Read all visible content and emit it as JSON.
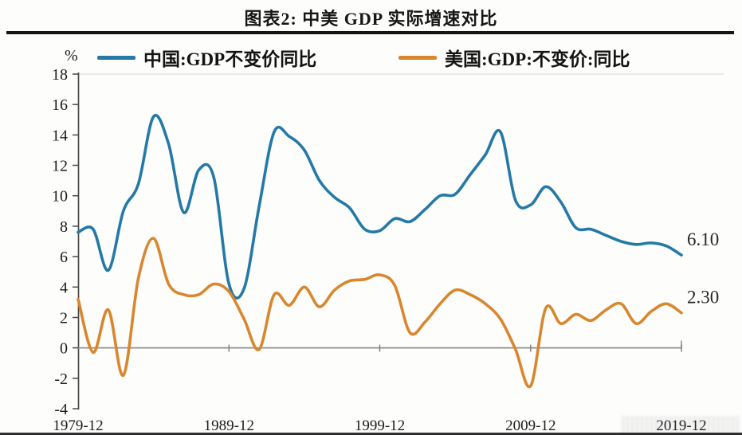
{
  "title": "图表2: 中美 GDP 实际增速对比",
  "axis_unit": "%",
  "legend": {
    "items": [
      {
        "label": "中国:GDP不变价同比",
        "color": "#2479A6"
      },
      {
        "label": "美国:GDP:不变价:同比",
        "color": "#D8872E"
      }
    ]
  },
  "chart_data": {
    "type": "line",
    "title": "图表2: 中美 GDP 实际增速对比",
    "xlabel": "",
    "ylabel": "%",
    "ylim": [
      -4,
      18
    ],
    "y_tick_step": 2,
    "grid": false,
    "legend_position": "top",
    "x_range": [
      1979,
      2019
    ],
    "x_tick_years": [
      1979,
      1989,
      1999,
      2009,
      2019
    ],
    "x_tick_labels": [
      "1979-12",
      "1989-12",
      "1999-12",
      "2009-12",
      "2019-12"
    ],
    "series": [
      {
        "name": "中国:GDP不变价同比",
        "color": "#2479A6",
        "end_label": "6.10",
        "values": [
          7.6,
          7.8,
          5.1,
          9.0,
          10.8,
          15.2,
          13.4,
          8.9,
          11.7,
          11.2,
          4.2,
          3.9,
          9.3,
          14.2,
          13.9,
          13.0,
          11.0,
          9.9,
          9.2,
          7.8,
          7.7,
          8.5,
          8.3,
          9.1,
          10.0,
          10.1,
          11.4,
          12.7,
          14.2,
          9.7,
          9.4,
          10.6,
          9.6,
          7.9,
          7.8,
          7.4,
          7.0,
          6.8,
          6.9,
          6.7,
          6.1
        ]
      },
      {
        "name": "美国:GDP:不变价:同比",
        "color": "#D8872E",
        "end_label": "2.30",
        "values": [
          3.2,
          -0.3,
          2.5,
          -1.8,
          4.6,
          7.2,
          4.2,
          3.5,
          3.5,
          4.2,
          3.7,
          1.9,
          -0.1,
          3.5,
          2.8,
          4.0,
          2.7,
          3.8,
          4.4,
          4.5,
          4.8,
          4.1,
          1.0,
          1.7,
          2.9,
          3.8,
          3.5,
          2.9,
          1.9,
          -0.1,
          -2.5,
          2.6,
          1.6,
          2.2,
          1.8,
          2.5,
          2.9,
          1.6,
          2.4,
          2.9,
          2.3
        ]
      }
    ]
  }
}
